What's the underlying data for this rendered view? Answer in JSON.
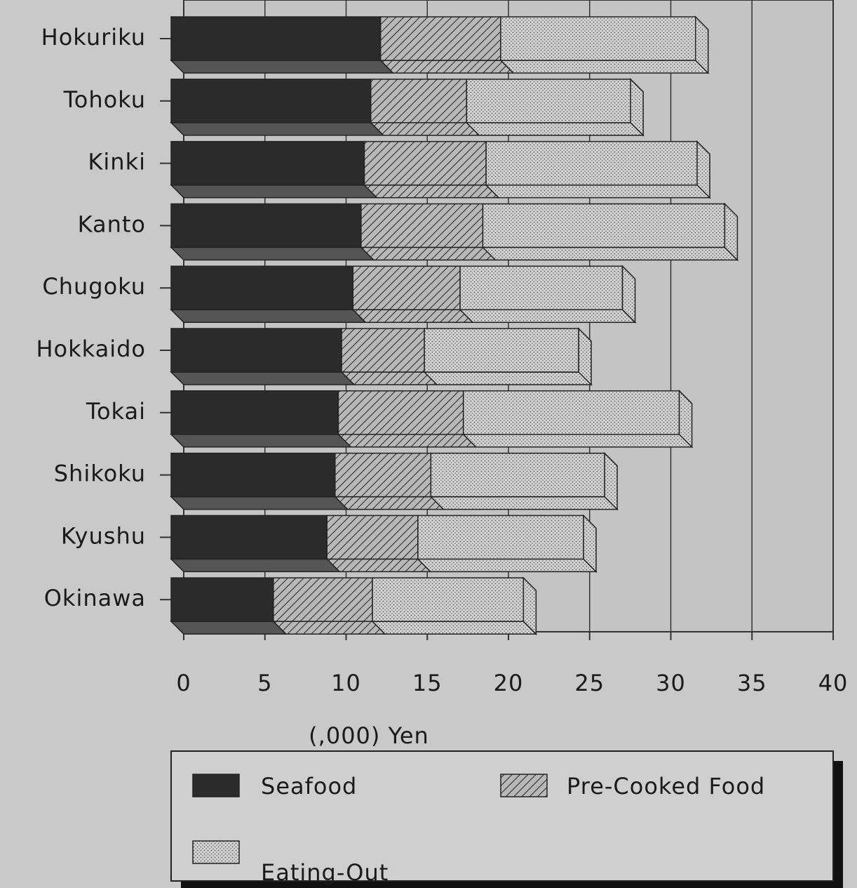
{
  "chart_data": {
    "type": "bar",
    "orientation": "horizontal",
    "stacked": true,
    "xlabel": "(,000) Yen",
    "categories": [
      "Hokuriku",
      "Tohoku",
      "Kinki",
      "Kanto",
      "Chugoku",
      "Hokkaido",
      "Tokai",
      "Shikoku",
      "Kyushu",
      "Okinawa"
    ],
    "series": [
      {
        "name": "Seafood",
        "color": "#2b2b2b",
        "pattern": "solid",
        "values": [
          12.9,
          12.3,
          11.9,
          11.7,
          11.2,
          10.5,
          10.3,
          10.1,
          9.6,
          6.3
        ]
      },
      {
        "name": "Pre-Cooked Food",
        "color": "#b8b8b8",
        "pattern": "hatch",
        "values": [
          7.4,
          5.9,
          7.5,
          7.5,
          6.6,
          5.1,
          7.7,
          5.9,
          5.6,
          6.1
        ]
      },
      {
        "name": "Eating-Out",
        "color": "#d4d4d4",
        "pattern": "dots",
        "values": [
          12.0,
          10.1,
          13.0,
          14.9,
          10.0,
          9.5,
          13.3,
          10.7,
          10.2,
          9.3
        ]
      }
    ],
    "xlim": [
      0,
      40
    ],
    "xticks": [
      0,
      5,
      10,
      15,
      20,
      25,
      30,
      35,
      40
    ],
    "grid": true,
    "legend": "bottom"
  }
}
